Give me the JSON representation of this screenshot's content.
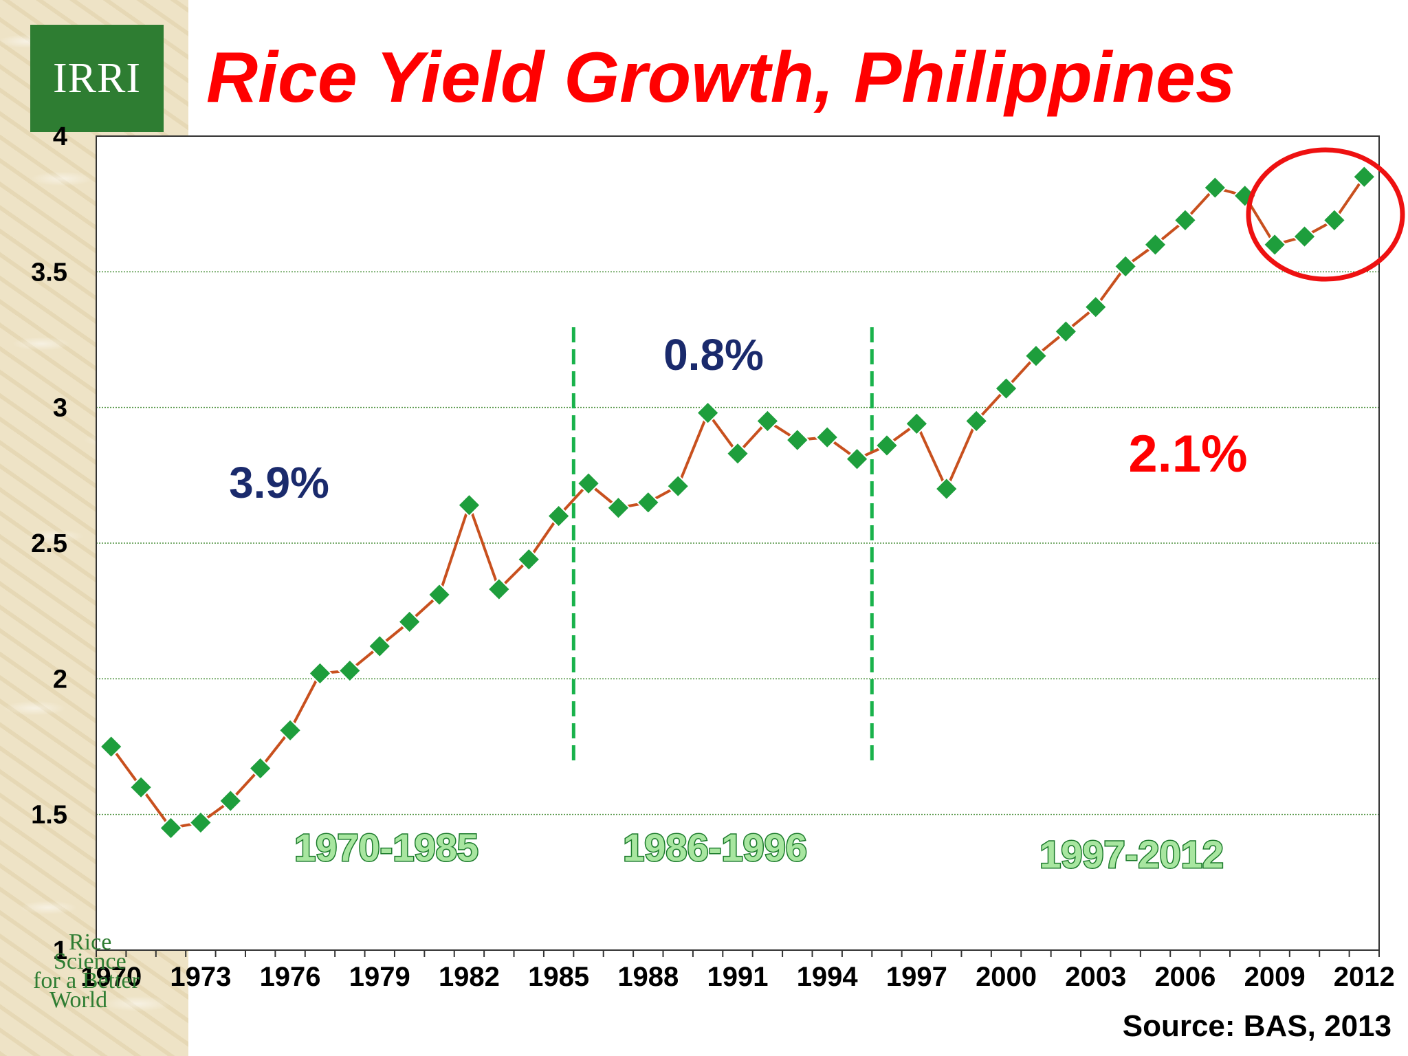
{
  "brand": {
    "logo_text": "IRRI",
    "tagline": [
      "Rice",
      "Science",
      "for a Better",
      "World"
    ]
  },
  "source_text": "Source: BAS, 2013",
  "colors": {
    "title": "#ff0000",
    "line": "#c8501e",
    "marker": "#1e9e3c",
    "marker_edge": "#ffffff",
    "period_divider": "#19b24b",
    "rate_blue": "#1a2a6c",
    "rate_red": "#ff0000",
    "highlight_circle": "#ee1111",
    "gridline": "#4a8f3a",
    "logo_bg": "#2e7d32"
  },
  "chart_data": {
    "type": "line",
    "title": "Rice Yield Growth, Philippines",
    "xlabel": "",
    "ylabel": "",
    "ylim": [
      1,
      4
    ],
    "xlim": [
      1969.5,
      2012.5
    ],
    "yticks": [
      1,
      1.5,
      2,
      2.5,
      3,
      3.5,
      4
    ],
    "ytick_labels": [
      "1",
      "1.5",
      "2",
      "2.5",
      "3",
      "3.5",
      "4"
    ],
    "xtick_labels": [
      "1970",
      "1973",
      "1976",
      "1979",
      "1982",
      "1985",
      "1988",
      "1991",
      "1994",
      "1997",
      "2000",
      "2003",
      "2006",
      "2009",
      "2012"
    ],
    "grid": "horizontal",
    "marker": "diamond",
    "series": [
      {
        "x": [
          1970,
          1971,
          1972,
          1973,
          1974,
          1975,
          1976,
          1977,
          1978,
          1979,
          1980,
          1981,
          1982,
          1983,
          1984,
          1985,
          1986,
          1987,
          1988,
          1989,
          1990,
          1991,
          1992,
          1993,
          1994,
          1995,
          1996,
          1997,
          1998,
          1999,
          2000,
          2001,
          2002,
          2003,
          2004,
          2005,
          2006,
          2007,
          2008,
          2009,
          2010,
          2011,
          2012
        ],
        "y": [
          1.75,
          1.6,
          1.45,
          1.47,
          1.55,
          1.67,
          1.81,
          2.02,
          2.03,
          2.12,
          2.21,
          2.31,
          2.64,
          2.33,
          2.44,
          2.6,
          2.72,
          2.63,
          2.65,
          2.71,
          2.98,
          2.83,
          2.95,
          2.88,
          2.89,
          2.81,
          2.86,
          2.94,
          2.7,
          2.95,
          3.07,
          3.19,
          3.28,
          3.37,
          3.52,
          3.6,
          3.69,
          3.81,
          3.78,
          3.6,
          3.63,
          3.69,
          3.85
        ]
      }
    ],
    "period_dividers": [
      1985.5,
      1995.5
    ],
    "periods": [
      {
        "label": "1970-1985",
        "growth": "3.9%",
        "growth_color": "blue"
      },
      {
        "label": "1986-1996",
        "growth": "0.8%",
        "growth_color": "blue"
      },
      {
        "label": "1997-2012",
        "growth": "2.1%",
        "growth_color": "red"
      }
    ],
    "highlight": {
      "shape": "ellipse",
      "x_range": [
        2009,
        2012
      ],
      "color": "red"
    }
  }
}
